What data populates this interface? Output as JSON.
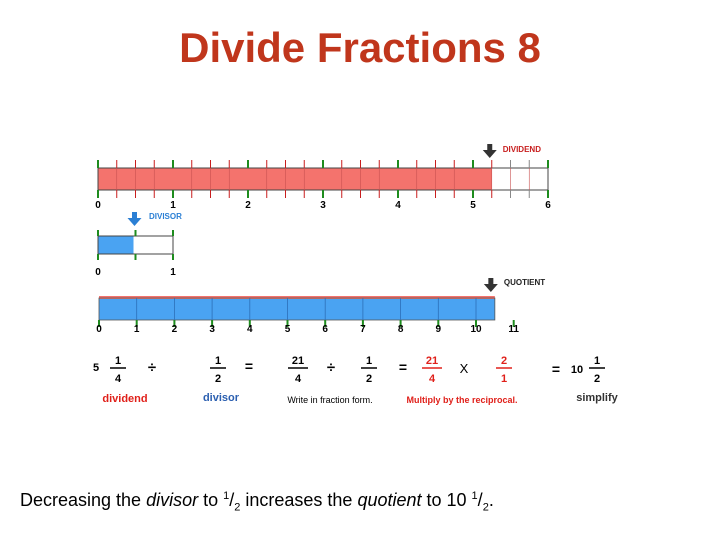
{
  "title": "Divide Fractions 8",
  "dividend_bar": {
    "label": "DIVIDEND",
    "scale_max": 6,
    "ticks": [
      "0",
      "1",
      "2",
      "3",
      "4",
      "5",
      "6"
    ],
    "filled_value": 5.25,
    "fill_color": "#f4736d",
    "marker_color": "#c81e1e",
    "arrow_color": "#333333"
  },
  "divisor_bar": {
    "label": "DIVISOR",
    "ticks": [
      "0",
      "1"
    ],
    "filled_value": 0.5,
    "fill_color": "#4aa3f2",
    "label_color": "#2b7fd4",
    "arrow_color": "#2b7fd4"
  },
  "quotient_bar": {
    "label": "QUOTIENT",
    "ticks": [
      "0",
      "1",
      "2",
      "3",
      "4",
      "5",
      "6",
      "7",
      "8",
      "9",
      "10",
      "11"
    ],
    "filled_value": 10.5,
    "fill_color": "#4aa3f2",
    "overlay_color": "#f4736d",
    "arrow_color": "#333333"
  },
  "equation": {
    "mixed_whole": "5",
    "dividend_num": "1",
    "dividend_den": "4",
    "op_div": "÷",
    "divisor_num": "1",
    "divisor_den": "2",
    "eq1": "=",
    "improper_num": "21",
    "improper_den": "4",
    "op_div2": "÷",
    "divisor2_num": "1",
    "divisor2_den": "2",
    "eq2": "=",
    "recip_left_num": "21",
    "recip_left_den": "4",
    "times": "X",
    "recip_right_num": "2",
    "recip_right_den": "1",
    "eq3": "=",
    "result_whole": "10",
    "result_num": "1",
    "result_den": "2",
    "red_color": "#e0201a"
  },
  "step_labels": {
    "dividend": "dividend",
    "divisor": "divisor",
    "fraction_form": "Write in fraction form.",
    "reciprocal": "Multiply by the reciprocal.",
    "simplify": "simplify",
    "dividend_color": "#e0201a",
    "divisor_color": "#2b5fb0"
  },
  "caption": {
    "part1": "Decreasing the ",
    "divisor_word": "divisor",
    "part2": " to ",
    "half_num": "1",
    "slash": "/",
    "half_den": "2",
    "part3": " increases the ",
    "quotient_word": "quotient",
    "part4": " to 10 ",
    "end_num": "1",
    "end_slash": "/",
    "end_den": "2",
    "period": "."
  }
}
